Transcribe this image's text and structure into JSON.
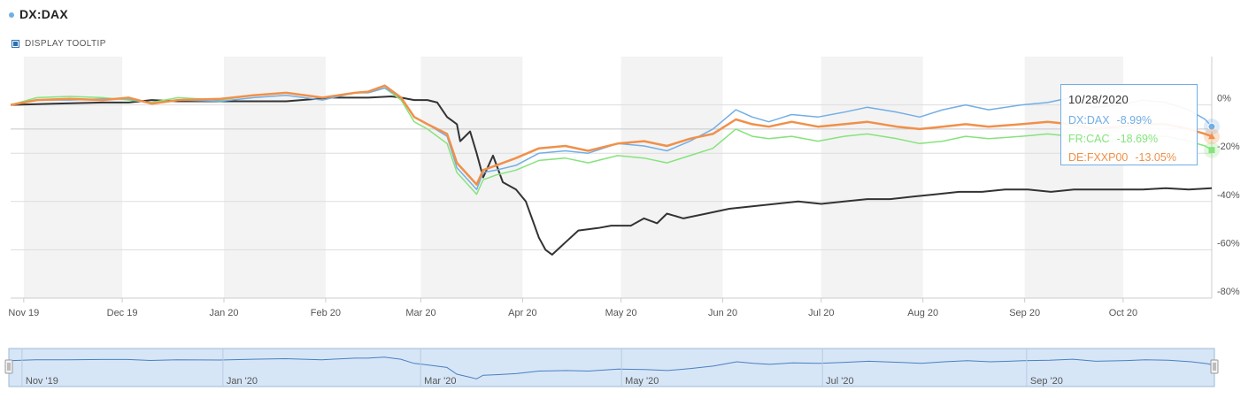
{
  "header": {
    "symbol": "DX:DAX",
    "display_tooltip_label": "DISPLAY TOOLTIP"
  },
  "colors": {
    "dax": "#72aee6",
    "cac": "#86e37c",
    "fxxp00": "#f0904a",
    "black": "#333333",
    "band": "#f3f3f3",
    "nav_fill": "#d6e6f7"
  },
  "tooltip": {
    "date": "10/28/2020",
    "rows": [
      {
        "label": "DX:DAX",
        "value": "-8.99%",
        "color": "#72aee6"
      },
      {
        "label": "FR:CAC",
        "value": "-18.69%",
        "color": "#86e37c"
      },
      {
        "label": "DE:FXXP00",
        "value": "-13.05%",
        "color": "#f0904a"
      }
    ]
  },
  "navigator": {
    "labels": [
      "Nov '19",
      "Jan '20",
      "Mar '20",
      "May '20",
      "Jul '20",
      "Sep '20"
    ]
  },
  "chart_data": {
    "type": "line",
    "xlabel": "",
    "ylabel": "",
    "x_range": [
      "2019-10-28",
      "2020-10-28"
    ],
    "ylim": [
      -80,
      20
    ],
    "y_ticks": [
      {
        "value": 0,
        "label": "0%"
      },
      {
        "value": -20,
        "label": "-20%"
      },
      {
        "value": -40,
        "label": "-40%"
      },
      {
        "value": -60,
        "label": "-60%"
      },
      {
        "value": -80,
        "label": "-80%"
      }
    ],
    "x_ticks": [
      {
        "date": "2019-11-01",
        "label": "Nov 19"
      },
      {
        "date": "2019-12-01",
        "label": "Dec 19"
      },
      {
        "date": "2020-01-01",
        "label": "Jan 20"
      },
      {
        "date": "2020-02-01",
        "label": "Feb 20"
      },
      {
        "date": "2020-03-01",
        "label": "Mar 20"
      },
      {
        "date": "2020-04-01",
        "label": "Apr 20"
      },
      {
        "date": "2020-05-01",
        "label": "May 20"
      },
      {
        "date": "2020-06-01",
        "label": "Jun 20"
      },
      {
        "date": "2020-07-01",
        "label": "Jul 20"
      },
      {
        "date": "2020-08-01",
        "label": "Aug 20"
      },
      {
        "date": "2020-09-01",
        "label": "Sep 20"
      },
      {
        "date": "2020-10-01",
        "label": "Oct 20"
      }
    ],
    "grid": true,
    "series": [
      {
        "name": "DX:DAX",
        "points": [
          [
            "2019-10-28",
            0
          ],
          [
            "2019-11-05",
            2
          ],
          [
            "2019-11-15",
            2
          ],
          [
            "2019-11-25",
            2.5
          ],
          [
            "2019-12-03",
            2.5
          ],
          [
            "2019-12-10",
            0.5
          ],
          [
            "2019-12-18",
            2
          ],
          [
            "2019-12-31",
            1.5
          ],
          [
            "2020-01-10",
            3
          ],
          [
            "2020-01-20",
            4
          ],
          [
            "2020-01-31",
            2
          ],
          [
            "2020-02-10",
            5
          ],
          [
            "2020-02-14",
            5
          ],
          [
            "2020-02-19",
            7
          ],
          [
            "2020-02-24",
            3
          ],
          [
            "2020-02-28",
            -5
          ],
          [
            "2020-03-03",
            -8
          ],
          [
            "2020-03-09",
            -13
          ],
          [
            "2020-03-12",
            -26
          ],
          [
            "2020-03-16",
            -32
          ],
          [
            "2020-03-18",
            -35
          ],
          [
            "2020-03-20",
            -28
          ],
          [
            "2020-03-24",
            -27
          ],
          [
            "2020-03-30",
            -25
          ],
          [
            "2020-04-06",
            -20
          ],
          [
            "2020-04-14",
            -19
          ],
          [
            "2020-04-21",
            -20
          ],
          [
            "2020-04-30",
            -16
          ],
          [
            "2020-05-08",
            -17
          ],
          [
            "2020-05-15",
            -19
          ],
          [
            "2020-05-22",
            -15
          ],
          [
            "2020-05-29",
            -10
          ],
          [
            "2020-06-05",
            -2
          ],
          [
            "2020-06-10",
            -5
          ],
          [
            "2020-06-15",
            -7
          ],
          [
            "2020-06-22",
            -4
          ],
          [
            "2020-06-30",
            -5
          ],
          [
            "2020-07-08",
            -3
          ],
          [
            "2020-07-15",
            -1
          ],
          [
            "2020-07-24",
            -3
          ],
          [
            "2020-07-31",
            -5
          ],
          [
            "2020-08-07",
            -2
          ],
          [
            "2020-08-14",
            0
          ],
          [
            "2020-08-21",
            -2
          ],
          [
            "2020-08-31",
            0
          ],
          [
            "2020-09-08",
            1
          ],
          [
            "2020-09-15",
            3
          ],
          [
            "2020-09-22",
            -1
          ],
          [
            "2020-09-30",
            0
          ],
          [
            "2020-10-07",
            2
          ],
          [
            "2020-10-14",
            1
          ],
          [
            "2020-10-21",
            -2
          ],
          [
            "2020-10-26",
            -6
          ],
          [
            "2020-10-28",
            -8.99
          ]
        ]
      },
      {
        "name": "FR:CAC",
        "points": [
          [
            "2019-10-28",
            0
          ],
          [
            "2019-11-05",
            3
          ],
          [
            "2019-11-15",
            3.5
          ],
          [
            "2019-11-25",
            3
          ],
          [
            "2019-12-03",
            2
          ],
          [
            "2019-12-10",
            1
          ],
          [
            "2019-12-18",
            3
          ],
          [
            "2019-12-31",
            2
          ],
          [
            "2020-01-10",
            4
          ],
          [
            "2020-01-20",
            5
          ],
          [
            "2020-01-31",
            3
          ],
          [
            "2020-02-10",
            5
          ],
          [
            "2020-02-14",
            5
          ],
          [
            "2020-02-19",
            7
          ],
          [
            "2020-02-24",
            2
          ],
          [
            "2020-02-28",
            -7
          ],
          [
            "2020-03-03",
            -10
          ],
          [
            "2020-03-09",
            -16
          ],
          [
            "2020-03-12",
            -28
          ],
          [
            "2020-03-16",
            -34
          ],
          [
            "2020-03-18",
            -37
          ],
          [
            "2020-03-20",
            -31
          ],
          [
            "2020-03-24",
            -29
          ],
          [
            "2020-03-30",
            -27
          ],
          [
            "2020-04-06",
            -23
          ],
          [
            "2020-04-14",
            -22
          ],
          [
            "2020-04-21",
            -24
          ],
          [
            "2020-04-30",
            -21
          ],
          [
            "2020-05-08",
            -22
          ],
          [
            "2020-05-15",
            -24
          ],
          [
            "2020-05-22",
            -21
          ],
          [
            "2020-05-29",
            -18
          ],
          [
            "2020-06-05",
            -10
          ],
          [
            "2020-06-10",
            -13
          ],
          [
            "2020-06-15",
            -14
          ],
          [
            "2020-06-22",
            -13
          ],
          [
            "2020-06-30",
            -15
          ],
          [
            "2020-07-08",
            -13
          ],
          [
            "2020-07-15",
            -12
          ],
          [
            "2020-07-24",
            -14
          ],
          [
            "2020-07-31",
            -16
          ],
          [
            "2020-08-07",
            -15
          ],
          [
            "2020-08-14",
            -13
          ],
          [
            "2020-08-21",
            -14
          ],
          [
            "2020-08-31",
            -13
          ],
          [
            "2020-09-08",
            -12
          ],
          [
            "2020-09-15",
            -13
          ],
          [
            "2020-09-22",
            -15
          ],
          [
            "2020-09-30",
            -15
          ],
          [
            "2020-10-07",
            -13
          ],
          [
            "2020-10-14",
            -13
          ],
          [
            "2020-10-21",
            -15
          ],
          [
            "2020-10-26",
            -17
          ],
          [
            "2020-10-28",
            -18.69
          ]
        ]
      },
      {
        "name": "DE:FXXP00",
        "points": [
          [
            "2019-10-28",
            0
          ],
          [
            "2019-11-05",
            2
          ],
          [
            "2019-11-15",
            2.5
          ],
          [
            "2019-11-25",
            2
          ],
          [
            "2019-12-03",
            3
          ],
          [
            "2019-12-10",
            0.5
          ],
          [
            "2019-12-18",
            2
          ],
          [
            "2019-12-31",
            2.5
          ],
          [
            "2020-01-10",
            4
          ],
          [
            "2020-01-20",
            5
          ],
          [
            "2020-01-31",
            3
          ],
          [
            "2020-02-10",
            5
          ],
          [
            "2020-02-14",
            5.5
          ],
          [
            "2020-02-19",
            8
          ],
          [
            "2020-02-24",
            3
          ],
          [
            "2020-02-28",
            -5
          ],
          [
            "2020-03-03",
            -8
          ],
          [
            "2020-03-09",
            -12
          ],
          [
            "2020-03-12",
            -24
          ],
          [
            "2020-03-16",
            -30
          ],
          [
            "2020-03-18",
            -33
          ],
          [
            "2020-03-20",
            -27
          ],
          [
            "2020-03-24",
            -25
          ],
          [
            "2020-03-30",
            -22
          ],
          [
            "2020-04-06",
            -18
          ],
          [
            "2020-04-14",
            -17
          ],
          [
            "2020-04-21",
            -19
          ],
          [
            "2020-04-30",
            -16
          ],
          [
            "2020-05-08",
            -15
          ],
          [
            "2020-05-15",
            -17
          ],
          [
            "2020-05-22",
            -14
          ],
          [
            "2020-05-29",
            -12
          ],
          [
            "2020-06-05",
            -6
          ],
          [
            "2020-06-10",
            -8
          ],
          [
            "2020-06-15",
            -9
          ],
          [
            "2020-06-22",
            -7
          ],
          [
            "2020-06-30",
            -9
          ],
          [
            "2020-07-08",
            -8
          ],
          [
            "2020-07-15",
            -7
          ],
          [
            "2020-07-24",
            -9
          ],
          [
            "2020-07-31",
            -10
          ],
          [
            "2020-08-07",
            -9
          ],
          [
            "2020-08-14",
            -8
          ],
          [
            "2020-08-21",
            -9
          ],
          [
            "2020-08-31",
            -8
          ],
          [
            "2020-09-08",
            -7
          ],
          [
            "2020-09-15",
            -8
          ],
          [
            "2020-09-22",
            -10
          ],
          [
            "2020-09-30",
            -9
          ],
          [
            "2020-10-07",
            -8
          ],
          [
            "2020-10-14",
            -8
          ],
          [
            "2020-10-21",
            -10
          ],
          [
            "2020-10-26",
            -12
          ],
          [
            "2020-10-28",
            -13.05
          ]
        ]
      },
      {
        "name": "",
        "points": [
          [
            "2019-10-28",
            0
          ],
          [
            "2019-11-10",
            0.5
          ],
          [
            "2019-11-25",
            1
          ],
          [
            "2019-12-03",
            1
          ],
          [
            "2019-12-10",
            2
          ],
          [
            "2019-12-18",
            1.5
          ],
          [
            "2020-01-06",
            1.5
          ],
          [
            "2020-01-20",
            1.5
          ],
          [
            "2020-02-03",
            3
          ],
          [
            "2020-02-14",
            3
          ],
          [
            "2020-02-21",
            3.5
          ],
          [
            "2020-02-24",
            3
          ],
          [
            "2020-02-28",
            2
          ],
          [
            "2020-03-03",
            2
          ],
          [
            "2020-03-06",
            1
          ],
          [
            "2020-03-09",
            -5
          ],
          [
            "2020-03-12",
            -8
          ],
          [
            "2020-03-13",
            -15
          ],
          [
            "2020-03-16",
            -11
          ],
          [
            "2020-03-18",
            -20
          ],
          [
            "2020-03-20",
            -30
          ],
          [
            "2020-03-23",
            -21
          ],
          [
            "2020-03-26",
            -32
          ],
          [
            "2020-03-30",
            -35
          ],
          [
            "2020-04-02",
            -40
          ],
          [
            "2020-04-06",
            -55
          ],
          [
            "2020-04-08",
            -60
          ],
          [
            "2020-04-10",
            -62
          ],
          [
            "2020-04-14",
            -57
          ],
          [
            "2020-04-18",
            -52
          ],
          [
            "2020-04-24",
            -51
          ],
          [
            "2020-04-28",
            -50
          ],
          [
            "2020-05-04",
            -50
          ],
          [
            "2020-05-08",
            -47
          ],
          [
            "2020-05-12",
            -49
          ],
          [
            "2020-05-15",
            -45
          ],
          [
            "2020-05-20",
            -47
          ],
          [
            "2020-05-27",
            -45
          ],
          [
            "2020-06-03",
            -43
          ],
          [
            "2020-06-10",
            -42
          ],
          [
            "2020-06-17",
            -41
          ],
          [
            "2020-06-24",
            -40
          ],
          [
            "2020-07-01",
            -41
          ],
          [
            "2020-07-08",
            -40
          ],
          [
            "2020-07-15",
            -39
          ],
          [
            "2020-07-22",
            -39
          ],
          [
            "2020-07-29",
            -38
          ],
          [
            "2020-08-05",
            -37
          ],
          [
            "2020-08-12",
            -36
          ],
          [
            "2020-08-19",
            -36
          ],
          [
            "2020-08-26",
            -35
          ],
          [
            "2020-09-02",
            -35
          ],
          [
            "2020-09-09",
            -36
          ],
          [
            "2020-09-16",
            -35
          ],
          [
            "2020-09-23",
            -35
          ],
          [
            "2020-09-30",
            -35
          ],
          [
            "2020-10-07",
            -35
          ],
          [
            "2020-10-14",
            -34.5
          ],
          [
            "2020-10-21",
            -35
          ],
          [
            "2020-10-28",
            -34.5
          ]
        ]
      }
    ]
  }
}
